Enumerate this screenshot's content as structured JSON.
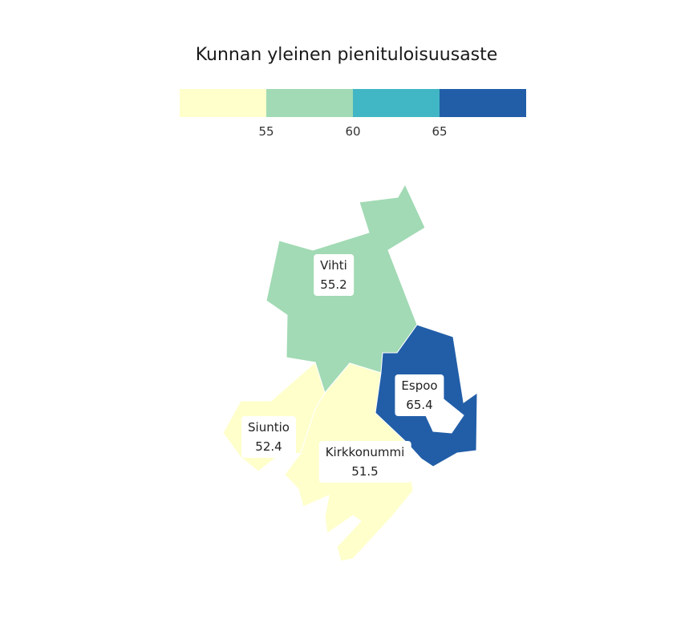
{
  "title": "Kunnan yleinen pienituloisuusaste",
  "legend": {
    "bins": [
      {
        "color": "#ffffcc"
      },
      {
        "color": "#a1dab4"
      },
      {
        "color": "#41b6c4"
      },
      {
        "color": "#225ea8"
      }
    ],
    "breaks": [
      "55",
      "60",
      "65"
    ]
  },
  "municipalities": [
    {
      "name": "Vihti",
      "value": "55.2",
      "color": "#a1dab4"
    },
    {
      "name": "Espoo",
      "value": "65.4",
      "color": "#225ea8"
    },
    {
      "name": "Siuntio",
      "value": "52.4",
      "color": "#ffffcc"
    },
    {
      "name": "Kirkkonummi",
      "value": "51.5",
      "color": "#ffffcc"
    }
  ]
}
